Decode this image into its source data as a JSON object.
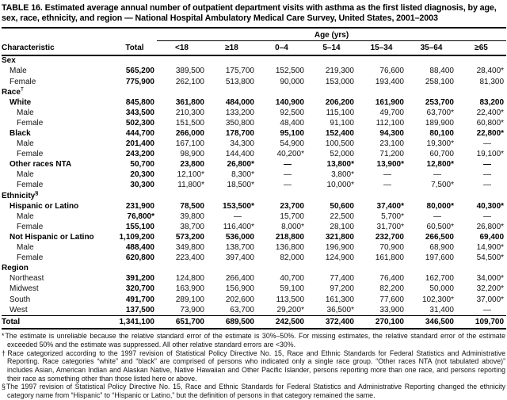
{
  "title": "TABLE 16. Estimated average annual number of outpatient department visits with asthma as the first listed diagnosis, by age, sex, race, ethnicity, and region — National Hospital Ambulatory Medical Care Survey, United States, 2001–2003",
  "table": {
    "age_group_label": "Age (yrs)",
    "columns": [
      "Characteristic",
      "Total",
      "<18",
      "≥18",
      "0–4",
      "5–14",
      "15–34",
      "35–64",
      "≥65"
    ],
    "rows": [
      {
        "label": "Sex",
        "marker": "",
        "type": "section",
        "indent": 0,
        "values": []
      },
      {
        "label": "Male",
        "marker": "",
        "type": "item",
        "indent": 1,
        "values": [
          "565,200",
          "389,500",
          "175,700",
          "152,500",
          "219,300",
          "76,600",
          "88,400",
          "28,400*"
        ]
      },
      {
        "label": "Female",
        "marker": "",
        "type": "item",
        "indent": 1,
        "values": [
          "775,900",
          "262,100",
          "513,800",
          "90,000",
          "153,000",
          "193,400",
          "258,100",
          "81,300"
        ]
      },
      {
        "label": "Race",
        "marker": "†",
        "type": "section",
        "indent": 0,
        "values": []
      },
      {
        "label": "White",
        "marker": "",
        "type": "cat",
        "indent": 1,
        "values": [
          "845,800",
          "361,800",
          "484,000",
          "140,900",
          "206,200",
          "161,900",
          "253,700",
          "83,200"
        ]
      },
      {
        "label": "Male",
        "marker": "",
        "type": "item",
        "indent": 2,
        "values": [
          "343,500",
          "210,300",
          "133,200",
          "92,500",
          "115,100",
          "49,700",
          "63,700*",
          "22,400*"
        ]
      },
      {
        "label": "Female",
        "marker": "",
        "type": "item",
        "indent": 2,
        "values": [
          "502,300",
          "151,500",
          "350,800",
          "48,400",
          "91,100",
          "112,100",
          "189,900",
          "60,800*"
        ]
      },
      {
        "label": "Black",
        "marker": "",
        "type": "cat",
        "indent": 1,
        "values": [
          "444,700",
          "266,000",
          "178,700",
          "95,100",
          "152,400",
          "94,300",
          "80,100",
          "22,800*"
        ]
      },
      {
        "label": "Male",
        "marker": "",
        "type": "item",
        "indent": 2,
        "values": [
          "201,400",
          "167,100",
          "34,300",
          "54,900",
          "100,500",
          "23,100",
          "19,300*",
          "—"
        ]
      },
      {
        "label": "Female",
        "marker": "",
        "type": "item",
        "indent": 2,
        "values": [
          "243,200",
          "98,900",
          "144,400",
          "40,200*",
          "52,000",
          "71,200",
          "60,700",
          "19,100*"
        ]
      },
      {
        "label": "Other races NTA",
        "marker": "",
        "type": "cat",
        "indent": 1,
        "values": [
          "50,700",
          "23,800",
          "26,800*",
          "—",
          "13,800*",
          "13,900*",
          "12,800*",
          "—"
        ]
      },
      {
        "label": "Male",
        "marker": "",
        "type": "item",
        "indent": 2,
        "values": [
          "20,300",
          "12,100*",
          "8,300*",
          "—",
          "3,800*",
          "—",
          "—",
          "—"
        ]
      },
      {
        "label": "Female",
        "marker": "",
        "type": "item",
        "indent": 2,
        "values": [
          "30,300",
          "11,800*",
          "18,500*",
          "—",
          "10,000*",
          "—",
          "7,500*",
          "—"
        ]
      },
      {
        "label": "Ethnicity",
        "marker": "§",
        "type": "section",
        "indent": 0,
        "values": []
      },
      {
        "label": "Hispanic or Latino",
        "marker": "",
        "type": "cat",
        "indent": 1,
        "values": [
          "231,900",
          "78,500",
          "153,500*",
          "23,700",
          "50,600",
          "37,400*",
          "80,000*",
          "40,300*"
        ]
      },
      {
        "label": "Male",
        "marker": "",
        "type": "item",
        "indent": 2,
        "values": [
          "76,800*",
          "39,800",
          "—",
          "15,700",
          "22,500",
          "5,700*",
          "—",
          "—"
        ]
      },
      {
        "label": "Female",
        "marker": "",
        "type": "item",
        "indent": 2,
        "values": [
          "155,100",
          "38,700",
          "116,400*",
          "8,000*",
          "28,100",
          "31,700*",
          "60,500*",
          "26,800*"
        ]
      },
      {
        "label": "Not Hispanic or Latino",
        "marker": "",
        "type": "cat",
        "indent": 1,
        "values": [
          "1,109,200",
          "573,200",
          "536,000",
          "218,800",
          "321,800",
          "232,700",
          "266,500",
          "69,400"
        ]
      },
      {
        "label": "Male",
        "marker": "",
        "type": "item",
        "indent": 2,
        "values": [
          "488,400",
          "349,800",
          "138,700",
          "136,800",
          "196,900",
          "70,900",
          "68,900",
          "14,900*"
        ]
      },
      {
        "label": "Female",
        "marker": "",
        "type": "item",
        "indent": 2,
        "values": [
          "620,800",
          "223,400",
          "397,400",
          "82,000",
          "124,900",
          "161,800",
          "197,600",
          "54,500*"
        ]
      },
      {
        "label": "Region",
        "marker": "",
        "type": "section",
        "indent": 0,
        "values": []
      },
      {
        "label": "Northeast",
        "marker": "",
        "type": "item",
        "indent": 1,
        "values": [
          "391,200",
          "124,800",
          "266,400",
          "40,700",
          "77,400",
          "76,400",
          "162,700",
          "34,000*"
        ]
      },
      {
        "label": "Midwest",
        "marker": "",
        "type": "item",
        "indent": 1,
        "values": [
          "320,700",
          "163,900",
          "156,900",
          "59,100",
          "97,200",
          "82,200",
          "50,000",
          "32,200*"
        ]
      },
      {
        "label": "South",
        "marker": "",
        "type": "item",
        "indent": 1,
        "values": [
          "491,700",
          "289,100",
          "202,600",
          "113,500",
          "161,300",
          "77,600",
          "102,300*",
          "37,000*"
        ]
      },
      {
        "label": "West",
        "marker": "",
        "type": "item",
        "indent": 1,
        "values": [
          "137,500",
          "73,900",
          "63,700",
          "29,200*",
          "36,500*",
          "33,900",
          "31,400",
          "—"
        ]
      },
      {
        "label": "Total",
        "marker": "",
        "type": "total",
        "indent": 0,
        "values": [
          "1,341,100",
          "651,700",
          "689,500",
          "242,500",
          "372,400",
          "270,100",
          "346,500",
          "109,700"
        ]
      }
    ]
  },
  "footnotes": [
    {
      "marker": "*",
      "text": "The estimate is unreliable because the relative standard error of the estimate is 30%–50%. For missing estimates, the relative standard error of the estimate exceeded 50% and the estimate was suppressed. All other relative standard errors are <30%."
    },
    {
      "marker": "†",
      "text": "Race categorized according to the 1997 revision of Statistical Policy Directive No. 15, Race and Ethnic Standards for Federal Statistics and Administrative Reporting. Race categories “white” and “black” are comprised of persons who indicated only a single race group. “Other races NTA (not tabulated above)” includes Asian, American Indian and Alaskan Native, Native Hawaiian and Other Pacific Islander, persons reporting more than one race, and persons reporting their race as something other than those listed here or above."
    },
    {
      "marker": "§",
      "text": "The 1997 revision of Statistical Policy Directive No. 15, Race and Ethnic Standards for Federal Statistics and Administrative Reporting changed the ethnicity category name from “Hispanic” to “Hispanic or Latino,” but the definition of persons in that category remained the same."
    }
  ]
}
